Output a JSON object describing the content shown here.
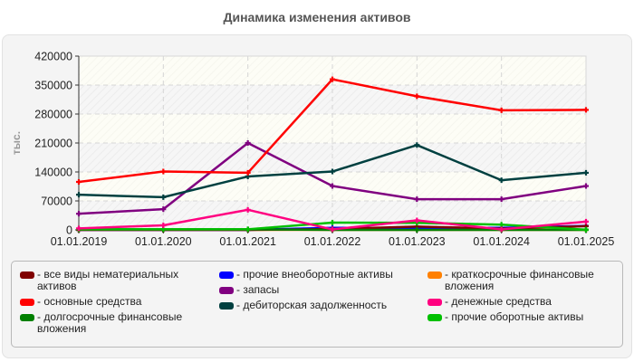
{
  "title": "Динамика изменения активов",
  "chart_data": {
    "type": "line",
    "title": "Динамика изменения активов",
    "xlabel": "",
    "ylabel": "тыс.",
    "ylim": [
      0,
      420000
    ],
    "yticks": [
      0,
      70000,
      140000,
      210000,
      280000,
      350000,
      420000
    ],
    "ytick_labels": [
      "0",
      "70000",
      "140000",
      "210000",
      "280000",
      "350000",
      "420000"
    ],
    "grid": true,
    "legend_position": "bottom",
    "categories": [
      "01.01.2019",
      "01.01.2020",
      "01.01.2021",
      "01.01.2022",
      "01.01.2023",
      "01.01.2024",
      "01.01.2025"
    ],
    "series": [
      {
        "name": "все виды нематериальных активов",
        "color": "#800000",
        "values": [
          0,
          0,
          0,
          2000,
          8000,
          3000,
          9000
        ]
      },
      {
        "name": "основные средства",
        "color": "#ff0000",
        "values": [
          116000,
          141000,
          138000,
          364000,
          323000,
          289000,
          290000
        ]
      },
      {
        "name": "долгосрочные финансовые вложения",
        "color": "#008000",
        "values": [
          1500,
          1500,
          1500,
          0,
          0,
          0,
          0
        ]
      },
      {
        "name": "прочие внеоборотные активы",
        "color": "#0000ff",
        "values": [
          0,
          0,
          0,
          5000,
          5000,
          5000,
          9500
        ]
      },
      {
        "name": "запасы",
        "color": "#800080",
        "values": [
          39000,
          50000,
          210000,
          106000,
          74000,
          74000,
          106000
        ]
      },
      {
        "name": "дебиторская задолженность",
        "color": "#004040",
        "values": [
          85000,
          79000,
          129000,
          141000,
          205000,
          120000,
          138000
        ]
      },
      {
        "name": "краткосрочные финансовые вложения",
        "color": "#ff8000",
        "values": [
          0,
          0,
          0,
          0,
          0,
          0,
          0
        ]
      },
      {
        "name": "денежные средства",
        "color": "#ff0080",
        "values": [
          3500,
          11000,
          48500,
          1000,
          23000,
          1000,
          20000
        ]
      },
      {
        "name": "прочие оборотные активы",
        "color": "#00c000",
        "values": [
          1500,
          1500,
          1500,
          17500,
          17000,
          12500,
          500
        ]
      }
    ]
  },
  "legend": {
    "columns": [
      [
        {
          "label": "- все виды нематериальных\nактивов",
          "color": "#800000"
        },
        {
          "label": "- основные средства",
          "color": "#ff0000"
        },
        {
          "label": "- долгосрочные финансовые\nвложения",
          "color": "#008000"
        }
      ],
      [
        {
          "label": "- прочие внеоборотные активы",
          "color": "#0000ff"
        },
        {
          "label": "- запасы",
          "color": "#800080"
        },
        {
          "label": "- дебиторская задолженность",
          "color": "#004040"
        }
      ],
      [
        {
          "label": "- краткосрочные финансовые\nвложения",
          "color": "#ff8000"
        },
        {
          "label": "- денежные средства",
          "color": "#ff0080"
        },
        {
          "label": "- прочие оборотные активы",
          "color": "#00c000"
        }
      ]
    ]
  }
}
